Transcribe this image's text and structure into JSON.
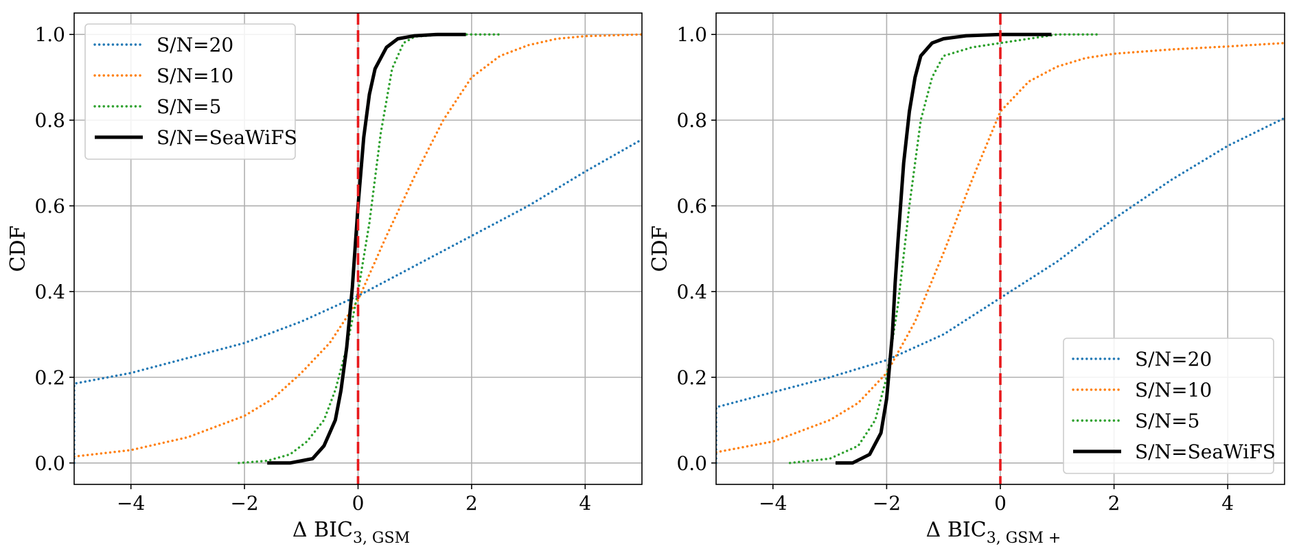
{
  "chart_data": [
    {
      "type": "line",
      "panel": "left",
      "xlabel_main": "Δ BIC",
      "xlabel_sub": "3, GSM",
      "ylabel": "CDF",
      "xlim": [
        -5,
        5
      ],
      "ylim": [
        -0.05,
        1.05
      ],
      "xticks": [
        -4,
        -2,
        0,
        2,
        4
      ],
      "xtick_labels": [
        "−4",
        "−2",
        "0",
        "2",
        "4"
      ],
      "yticks": [
        0.0,
        0.2,
        0.4,
        0.6,
        0.8,
        1.0
      ],
      "ytick_labels": [
        "0.0",
        "0.2",
        "0.4",
        "0.6",
        "0.8",
        "1.0"
      ],
      "grid": true,
      "legend_position": "upper-left",
      "reference_line": {
        "x": 0,
        "color": "#e8191c",
        "style": "dashed"
      },
      "series": [
        {
          "name": "S/N=20",
          "color": "#1f77b4",
          "style": "dotted",
          "x": [
            -5.0,
            -5.0,
            -4.0,
            -3.0,
            -2.0,
            -1.0,
            0.0,
            1.0,
            2.0,
            3.0,
            4.0,
            5.0
          ],
          "y": [
            0.0,
            0.185,
            0.21,
            0.245,
            0.28,
            0.33,
            0.39,
            0.46,
            0.53,
            0.6,
            0.68,
            0.755
          ]
        },
        {
          "name": "S/N=10",
          "color": "#ff7f0e",
          "style": "dotted",
          "x": [
            -5.0,
            -4.0,
            -3.0,
            -2.0,
            -1.5,
            -1.0,
            -0.5,
            0.0,
            0.5,
            1.0,
            1.5,
            2.0,
            2.5,
            3.0,
            3.5,
            4.0,
            5.0
          ],
          "y": [
            0.015,
            0.03,
            0.06,
            0.11,
            0.15,
            0.21,
            0.28,
            0.38,
            0.53,
            0.67,
            0.8,
            0.9,
            0.95,
            0.975,
            0.99,
            0.996,
            1.0
          ]
        },
        {
          "name": "S/N=5",
          "color": "#2ca02c",
          "style": "dotted",
          "x": [
            -2.1,
            -1.6,
            -1.2,
            -0.9,
            -0.6,
            -0.4,
            -0.2,
            0.0,
            0.2,
            0.4,
            0.6,
            0.8,
            1.0,
            1.5,
            2.0,
            2.5
          ],
          "y": [
            0.0,
            0.005,
            0.02,
            0.05,
            0.1,
            0.17,
            0.27,
            0.4,
            0.56,
            0.77,
            0.92,
            0.98,
            0.995,
            1.0,
            1.0,
            1.0
          ]
        },
        {
          "name": "S/N=SeaWiFS",
          "color": "#000000",
          "style": "solid",
          "x": [
            -1.6,
            -1.2,
            -0.8,
            -0.6,
            -0.4,
            -0.3,
            -0.2,
            -0.1,
            0.0,
            0.1,
            0.2,
            0.3,
            0.5,
            0.7,
            1.0,
            1.4,
            1.9
          ],
          "y": [
            0.0,
            0.0,
            0.01,
            0.04,
            0.1,
            0.17,
            0.27,
            0.41,
            0.6,
            0.76,
            0.86,
            0.92,
            0.97,
            0.99,
            0.997,
            1.0,
            1.0
          ]
        }
      ]
    },
    {
      "type": "line",
      "panel": "right",
      "xlabel_main": "Δ BIC",
      "xlabel_sub": "3, GSM +",
      "ylabel": "CDF",
      "xlim": [
        -5,
        5
      ],
      "ylim": [
        -0.05,
        1.05
      ],
      "xticks": [
        -4,
        -2,
        0,
        2,
        4
      ],
      "xtick_labels": [
        "−4",
        "−2",
        "0",
        "2",
        "4"
      ],
      "yticks": [
        0.0,
        0.2,
        0.4,
        0.6,
        0.8,
        1.0
      ],
      "ytick_labels": [
        "0.0",
        "0.2",
        "0.4",
        "0.6",
        "0.8",
        "1.0"
      ],
      "grid": true,
      "legend_position": "lower-right",
      "reference_line": {
        "x": 0,
        "color": "#e8191c",
        "style": "dashed"
      },
      "series": [
        {
          "name": "S/N=20",
          "color": "#1f77b4",
          "style": "dotted",
          "x": [
            -5.0,
            -5.0,
            -4.0,
            -3.0,
            -2.0,
            -1.0,
            0.0,
            1.0,
            2.0,
            3.0,
            4.0,
            5.0
          ],
          "y": [
            0.0,
            0.13,
            0.165,
            0.2,
            0.24,
            0.3,
            0.385,
            0.47,
            0.57,
            0.66,
            0.74,
            0.805
          ]
        },
        {
          "name": "S/N=10",
          "color": "#ff7f0e",
          "style": "dotted",
          "x": [
            -5.0,
            -4.0,
            -3.0,
            -2.5,
            -2.0,
            -1.5,
            -1.0,
            -0.5,
            0.0,
            0.5,
            1.0,
            1.5,
            2.0,
            3.0,
            4.0,
            5.0
          ],
          "y": [
            0.025,
            0.05,
            0.1,
            0.14,
            0.21,
            0.33,
            0.49,
            0.66,
            0.82,
            0.89,
            0.925,
            0.945,
            0.955,
            0.965,
            0.972,
            0.98
          ]
        },
        {
          "name": "S/N=5",
          "color": "#2ca02c",
          "style": "dotted",
          "x": [
            -3.7,
            -3.0,
            -2.5,
            -2.2,
            -2.0,
            -1.8,
            -1.6,
            -1.4,
            -1.2,
            -1.0,
            -0.5,
            0.0,
            0.5,
            1.0,
            1.7
          ],
          "y": [
            0.0,
            0.01,
            0.04,
            0.1,
            0.2,
            0.37,
            0.6,
            0.8,
            0.9,
            0.95,
            0.97,
            0.98,
            0.99,
            1.0,
            1.0
          ]
        },
        {
          "name": "S/N=SeaWiFS",
          "color": "#000000",
          "style": "solid",
          "x": [
            -2.9,
            -2.6,
            -2.3,
            -2.1,
            -2.0,
            -1.9,
            -1.85,
            -1.8,
            -1.7,
            -1.6,
            -1.5,
            -1.4,
            -1.2,
            -1.0,
            -0.6,
            0.0,
            0.9
          ],
          "y": [
            0.0,
            0.0,
            0.02,
            0.07,
            0.15,
            0.3,
            0.42,
            0.52,
            0.7,
            0.82,
            0.9,
            0.95,
            0.98,
            0.99,
            0.997,
            1.0,
            1.0
          ]
        }
      ]
    }
  ]
}
